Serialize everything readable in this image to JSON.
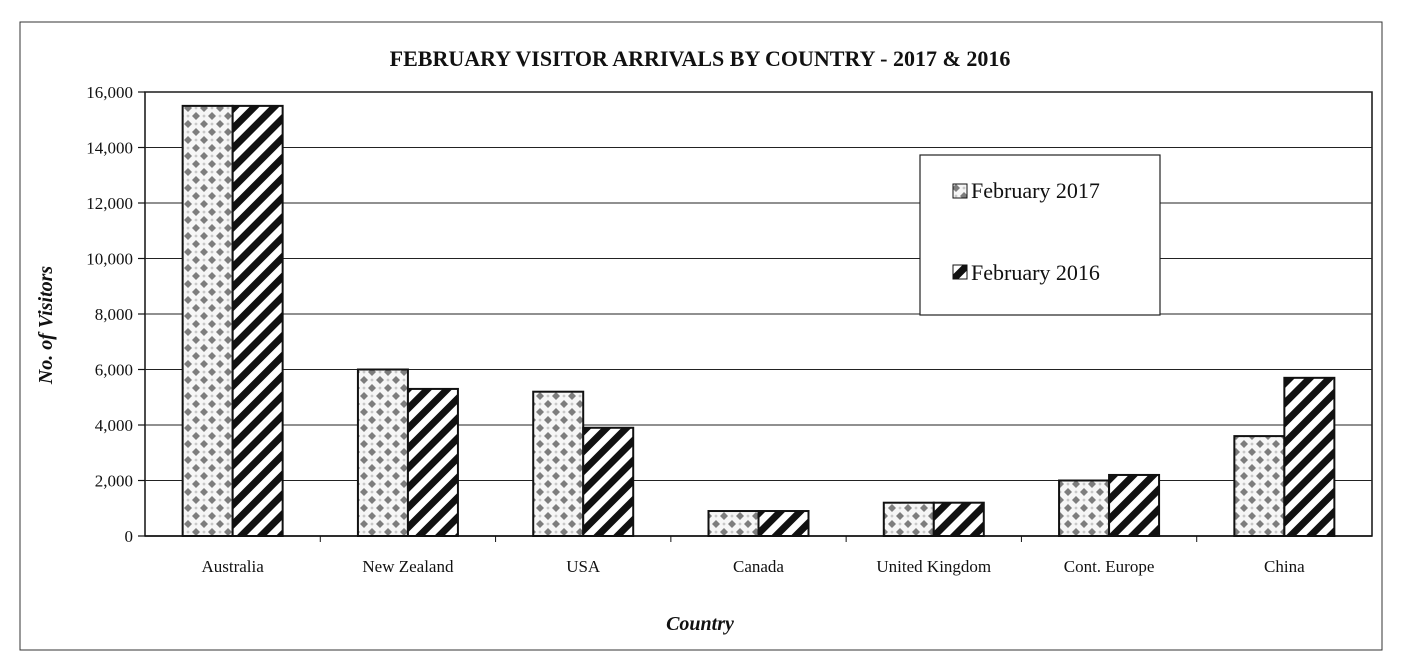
{
  "chart_data": {
    "type": "bar",
    "title": "FEBRUARY VISITOR ARRIVALS BY COUNTRY -  2017 & 2016",
    "xlabel": "Country",
    "ylabel": "No. of Visitors",
    "ylim": [
      0,
      16000
    ],
    "yticks": [
      0,
      2000,
      4000,
      6000,
      8000,
      10000,
      12000,
      14000,
      16000
    ],
    "ytick_labels": [
      "0",
      "2,000",
      "4,000",
      "6,000",
      "8,000",
      "10,000",
      "12,000",
      "14,000",
      "16,000"
    ],
    "grid": true,
    "legend_position": "top-right",
    "categories": [
      "Australia",
      "New Zealand",
      "USA",
      "Canada",
      "United Kingdom",
      "Cont. Europe",
      "China"
    ],
    "series": [
      {
        "name": "February 2017",
        "pattern": "diamond-checker",
        "values": [
          15500,
          6000,
          5200,
          900,
          1200,
          2000,
          3600
        ]
      },
      {
        "name": "February 2016",
        "pattern": "diagonal-stripes",
        "values": [
          15500,
          5300,
          3900,
          900,
          1200,
          2200,
          5700
        ]
      }
    ],
    "colors": {
      "ink": "#111111",
      "diamond": "#8a8a8a",
      "grid": "#222222"
    }
  }
}
